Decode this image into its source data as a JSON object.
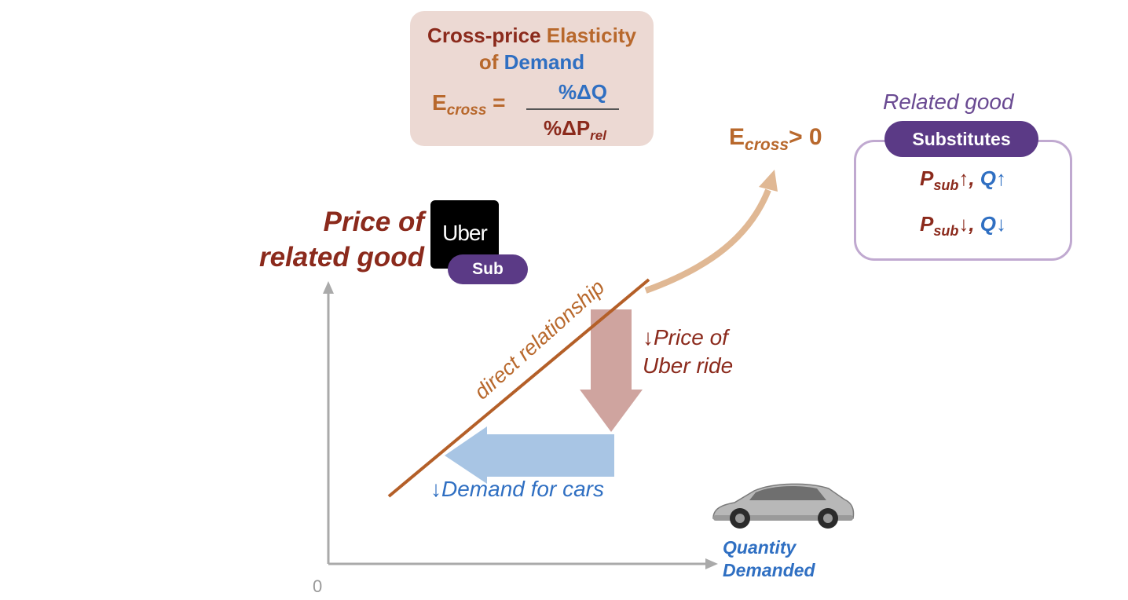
{
  "formula": {
    "title_part1": "Cross-price",
    "title_part2": "Elasticity",
    "title_part3": "of",
    "title_part4": "Demand",
    "lhs_E": "E",
    "lhs_sub": "cross",
    "equals": "=",
    "numerator": "%ΔQ",
    "denominator_main": "%ΔP",
    "denominator_sub": "rel"
  },
  "ecross_label": {
    "E": "E",
    "sub": "cross",
    "rest": "> 0"
  },
  "related": {
    "title": "Related good",
    "pill": "Substitutes",
    "row1": {
      "p": "P",
      "sub": "sub",
      "arrow": "↑",
      "sep": ",",
      "q": "Q↑"
    },
    "row2": {
      "p": "P",
      "sub": "sub",
      "arrow": "↓",
      "sep": ",",
      "q": "Q↓"
    }
  },
  "axis": {
    "y_title_line1": "Price of",
    "y_title_line2": "related good",
    "x_title_line1": "Quantity",
    "x_title_line2": "Demanded",
    "origin": "0"
  },
  "logo": {
    "text": "Uber",
    "pill": "Sub"
  },
  "annotations": {
    "direct_relationship": "direct relationship",
    "price_uber_line1": "↓Price of",
    "price_uber_line2": "Uber ride",
    "demand_cars": "↓Demand for cars"
  },
  "colors": {
    "dark_red": "#8b2a1c",
    "orange": "#b8682c",
    "blue": "#2f6fc2",
    "purple": "#5b3a86",
    "down_arrow": "#cfa49f",
    "left_arrow": "#a8c5e4",
    "curve_arrow": "#e0b894"
  },
  "icons": [
    "uber-logo-icon",
    "car-icon"
  ]
}
